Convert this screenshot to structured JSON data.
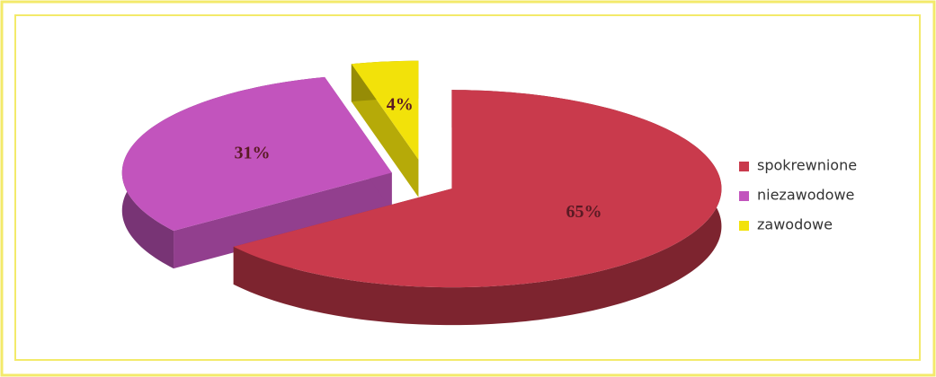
{
  "chart_data": {
    "type": "pie3d",
    "categories": [
      "spokrewnione",
      "niezawodowe",
      "zawodowe"
    ],
    "values": [
      65,
      31,
      4
    ],
    "value_labels": [
      "65%",
      "31%",
      "4%"
    ],
    "colors": [
      "#c93a4c",
      "#c254bd",
      "#f2e20a"
    ],
    "legend": "right"
  }
}
